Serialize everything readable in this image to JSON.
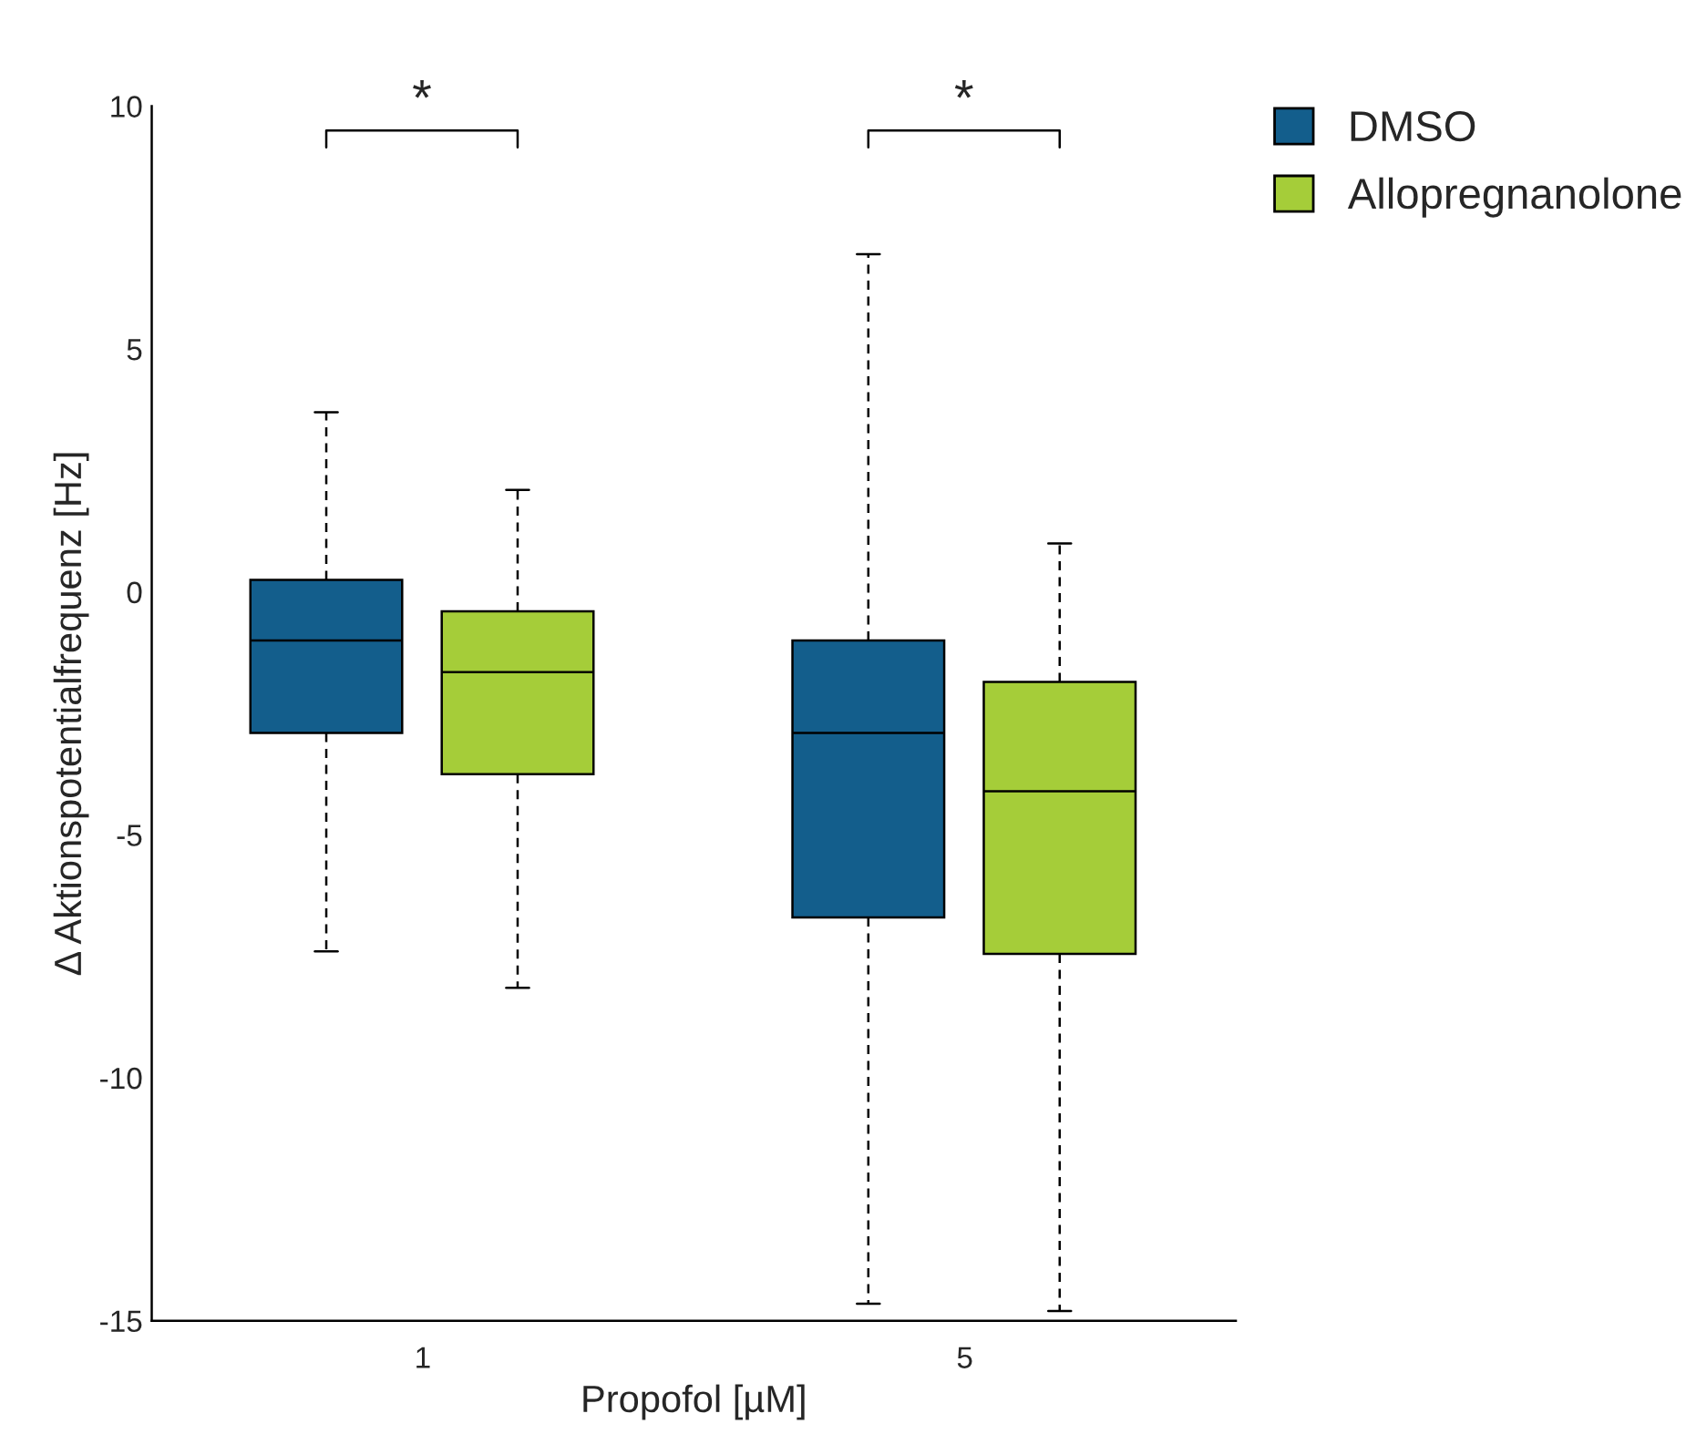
{
  "chart_data": {
    "type": "box",
    "xlabel": "Propofol [µM]",
    "ylabel": "Δ Aktionspotentialfrequenz [Hz]",
    "categories": [
      "1",
      "5"
    ],
    "series": [
      {
        "name": "DMSO",
        "color": "#135e8c",
        "boxes": [
          {
            "low": -7.4,
            "q1": -2.9,
            "median": -1.0,
            "q3": 0.25,
            "high": 3.7
          },
          {
            "low": -14.65,
            "q1": -6.7,
            "median": -2.9,
            "q3": -1.0,
            "high": 6.95
          }
        ]
      },
      {
        "name": "Allopregnanolone",
        "color": "#a5cd39",
        "boxes": [
          {
            "low": -8.15,
            "q1": -3.75,
            "median": -1.65,
            "q3": -0.4,
            "high": 2.1
          },
          {
            "low": -14.8,
            "q1": -7.45,
            "median": -4.1,
            "q3": -1.85,
            "high": 1.0
          }
        ]
      }
    ],
    "ylim": [
      -15,
      10
    ],
    "yticks": [
      {
        "value": -15,
        "label": "-15"
      },
      {
        "value": -10,
        "label": "-10"
      },
      {
        "value": -5,
        "label": "-5"
      },
      0,
      5,
      10
    ],
    "grid": false,
    "legend": "top right",
    "annotations": [
      "*",
      "*"
    ]
  }
}
